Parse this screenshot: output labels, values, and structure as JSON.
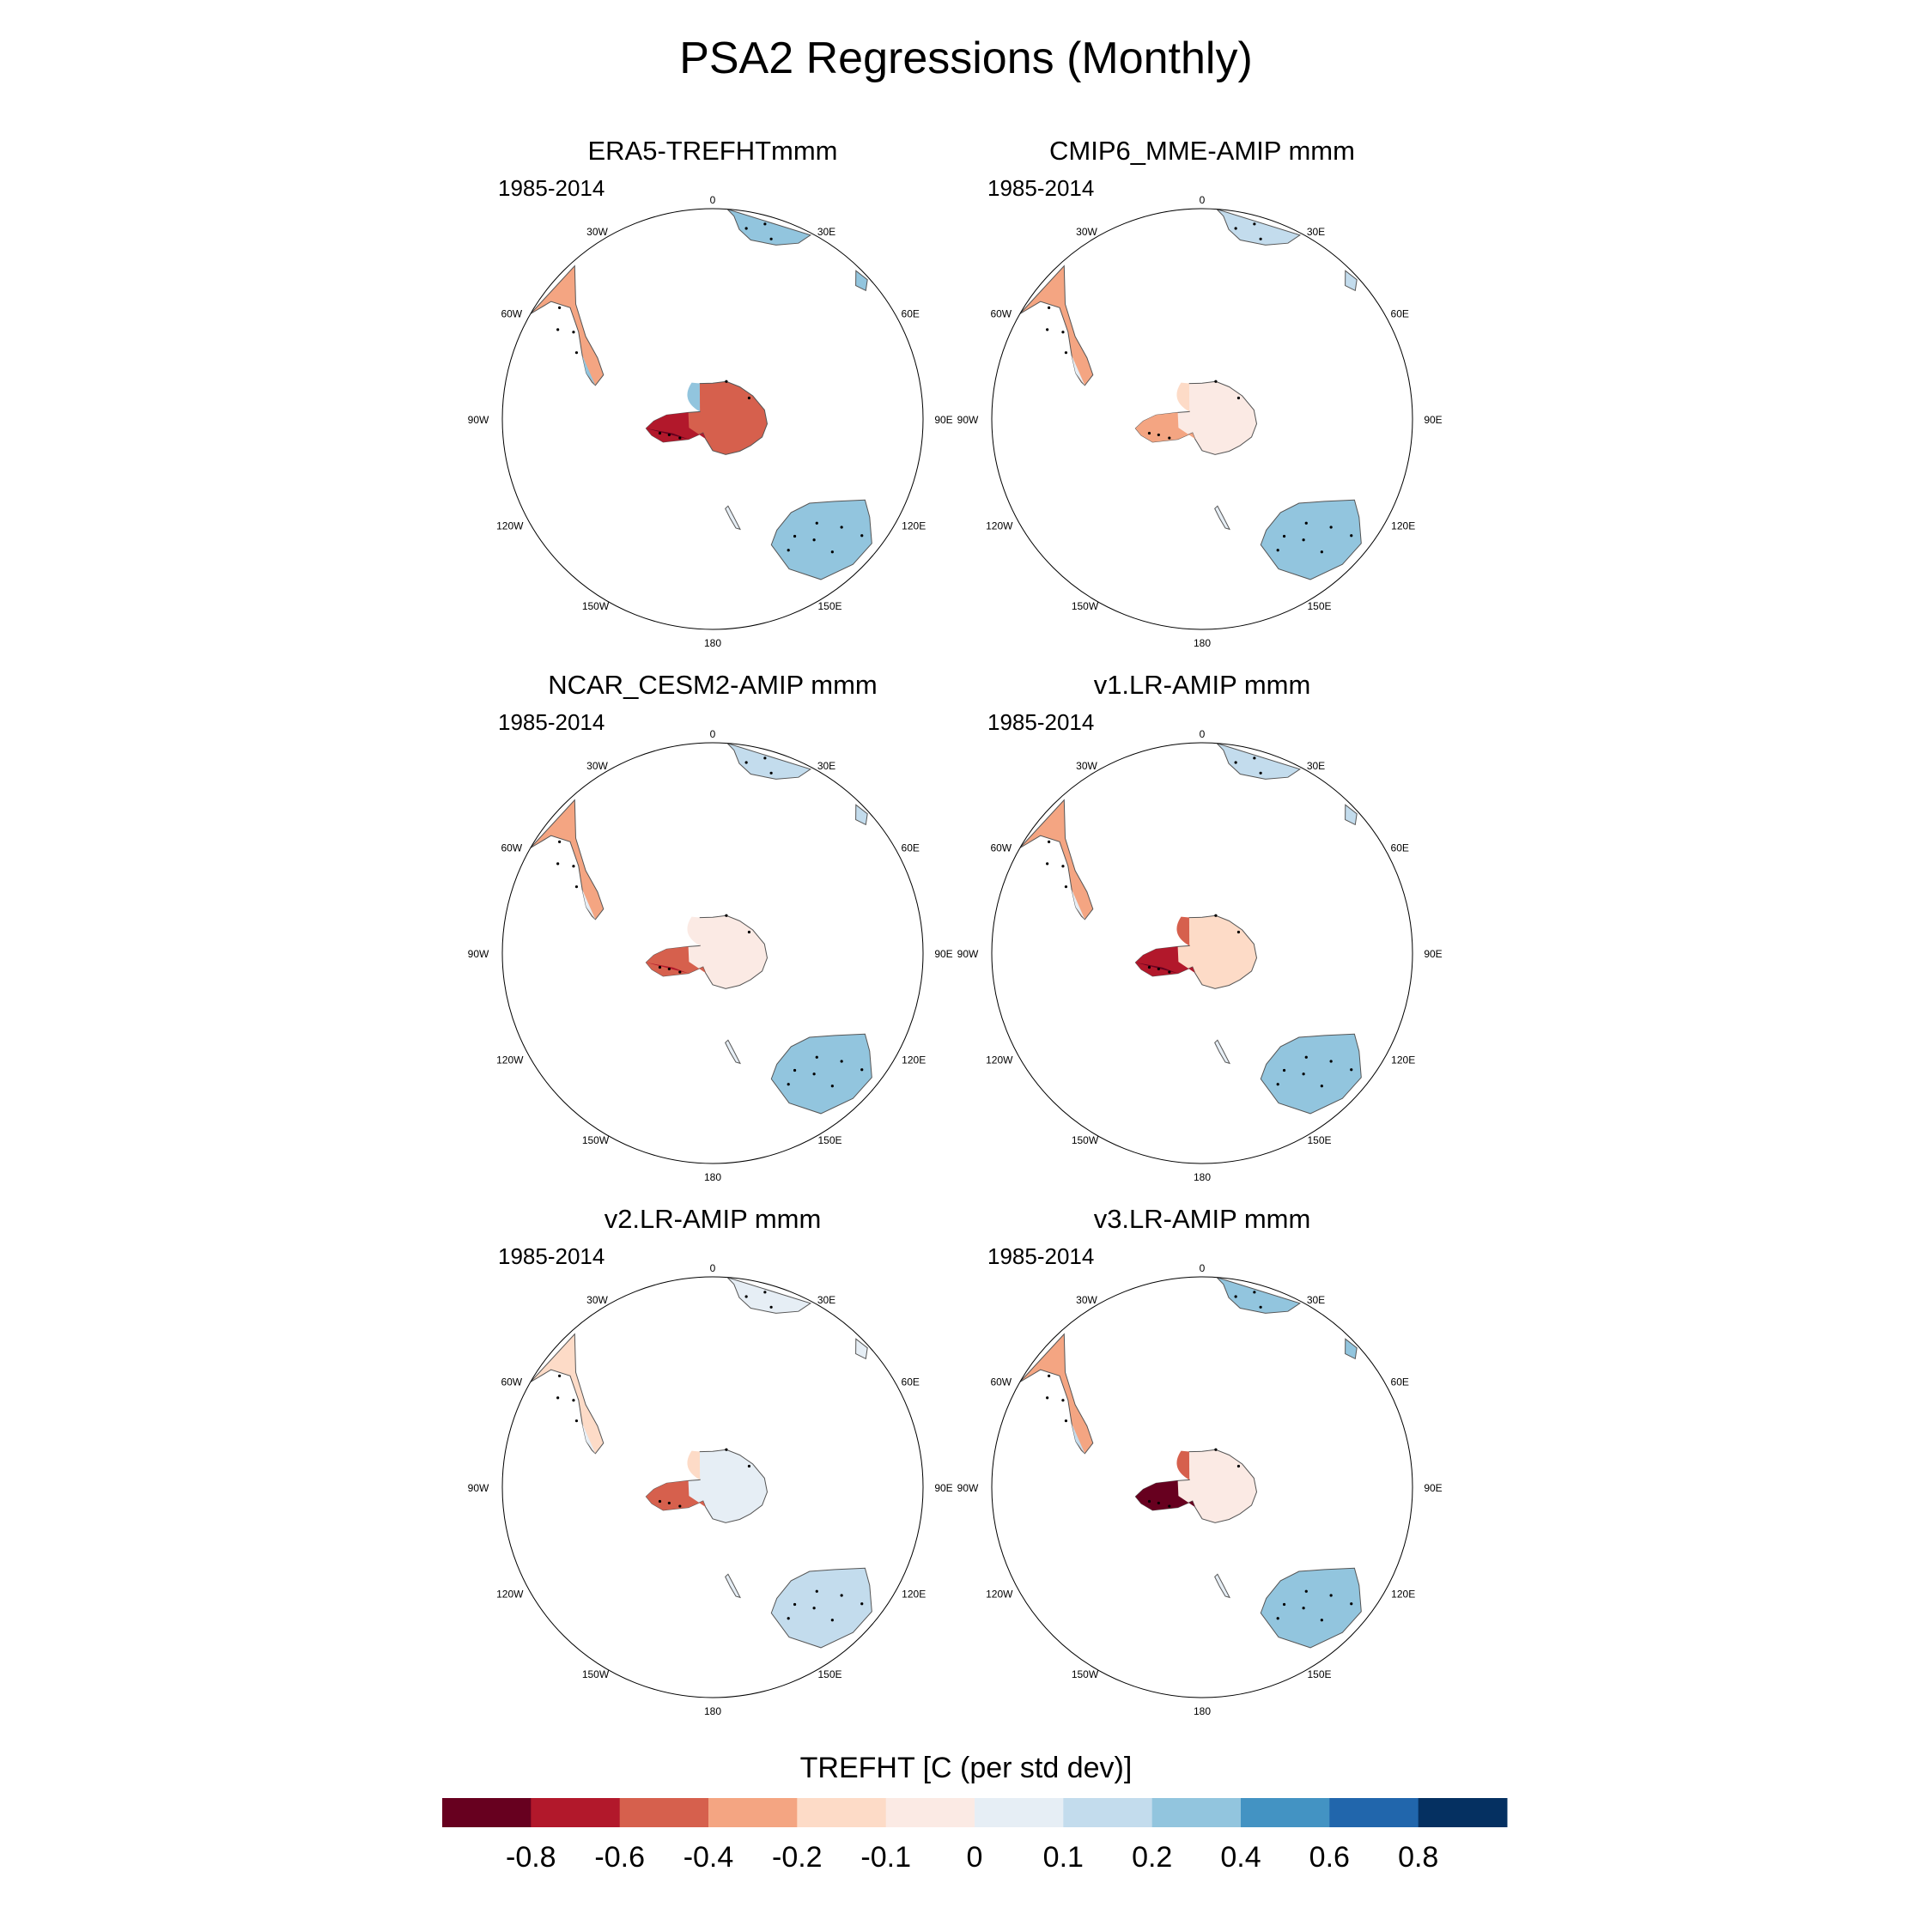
{
  "figure": {
    "title": "PSA2 Regressions (Monthly)",
    "period": "1985-2014",
    "longitude_labels": [
      "0",
      "30E",
      "60E",
      "90E",
      "120E",
      "150E",
      "180",
      "150W",
      "120W",
      "90W",
      "60W",
      "30W"
    ]
  },
  "panels": [
    {
      "title": "ERA5-TREFHTmmm",
      "pattern": {
        "wap": -0.9,
        "ea": 0.35,
        "ant_core": -0.5,
        "ant_pen": -0.8,
        "aus": 0.3,
        "saf": 0.3,
        "sam": -0.25,
        "sam_s": 0.25,
        "nz": 0.0
      }
    },
    {
      "title": "CMIP6_MME-AMIP  mmm",
      "pattern": {
        "wap": -0.35,
        "ea": -0.15,
        "ant_core": -0.05,
        "ant_pen": -0.3,
        "aus": 0.25,
        "saf": 0.1,
        "sam": -0.3,
        "sam_s": 0.05,
        "nz": 0.0
      }
    },
    {
      "title": "NCAR_CESM2-AMIP  mmm",
      "pattern": {
        "wap": -0.75,
        "ea": -0.05,
        "ant_core": -0.05,
        "ant_pen": -0.5,
        "aus": 0.3,
        "saf": 0.15,
        "sam": -0.35,
        "sam_s": 0.05,
        "nz": 0.0
      }
    },
    {
      "title": "v1.LR-AMIP  mmm",
      "pattern": {
        "wap": -0.85,
        "ea": -0.45,
        "ant_core": -0.15,
        "ant_pen": -0.7,
        "aus": 0.35,
        "saf": 0.15,
        "sam": -0.35,
        "sam_s": 0.05,
        "nz": 0.0
      }
    },
    {
      "title": "v2.LR-AMIP  mmm",
      "pattern": {
        "wap": -0.45,
        "ea": -0.2,
        "ant_core": 0.05,
        "ant_pen": -0.45,
        "aus": 0.15,
        "saf": 0.05,
        "sam": -0.15,
        "sam_s": 0.05,
        "nz": 0.0
      }
    },
    {
      "title": "v3.LR-AMIP  mmm",
      "pattern": {
        "wap": -0.9,
        "ea": -0.6,
        "ant_core": -0.1,
        "ant_pen": -0.85,
        "aus": 0.3,
        "saf": 0.3,
        "sam": -0.35,
        "sam_s": 0.1,
        "nz": 0.0
      }
    }
  ],
  "colorbar": {
    "title": "TREFHT [C (per std dev)]",
    "labels": [
      "-0.8",
      "-0.6",
      "-0.4",
      "-0.2",
      "-0.1",
      "0",
      "0.1",
      "0.2",
      "0.4",
      "0.6",
      "0.8"
    ],
    "colors": [
      "#67001f",
      "#b2182b",
      "#d6604d",
      "#f4a582",
      "#fddbc7",
      "#fbeae4",
      "#e6eef5",
      "#c3dced",
      "#92c5de",
      "#4393c3",
      "#2166ac",
      "#053061"
    ]
  }
}
